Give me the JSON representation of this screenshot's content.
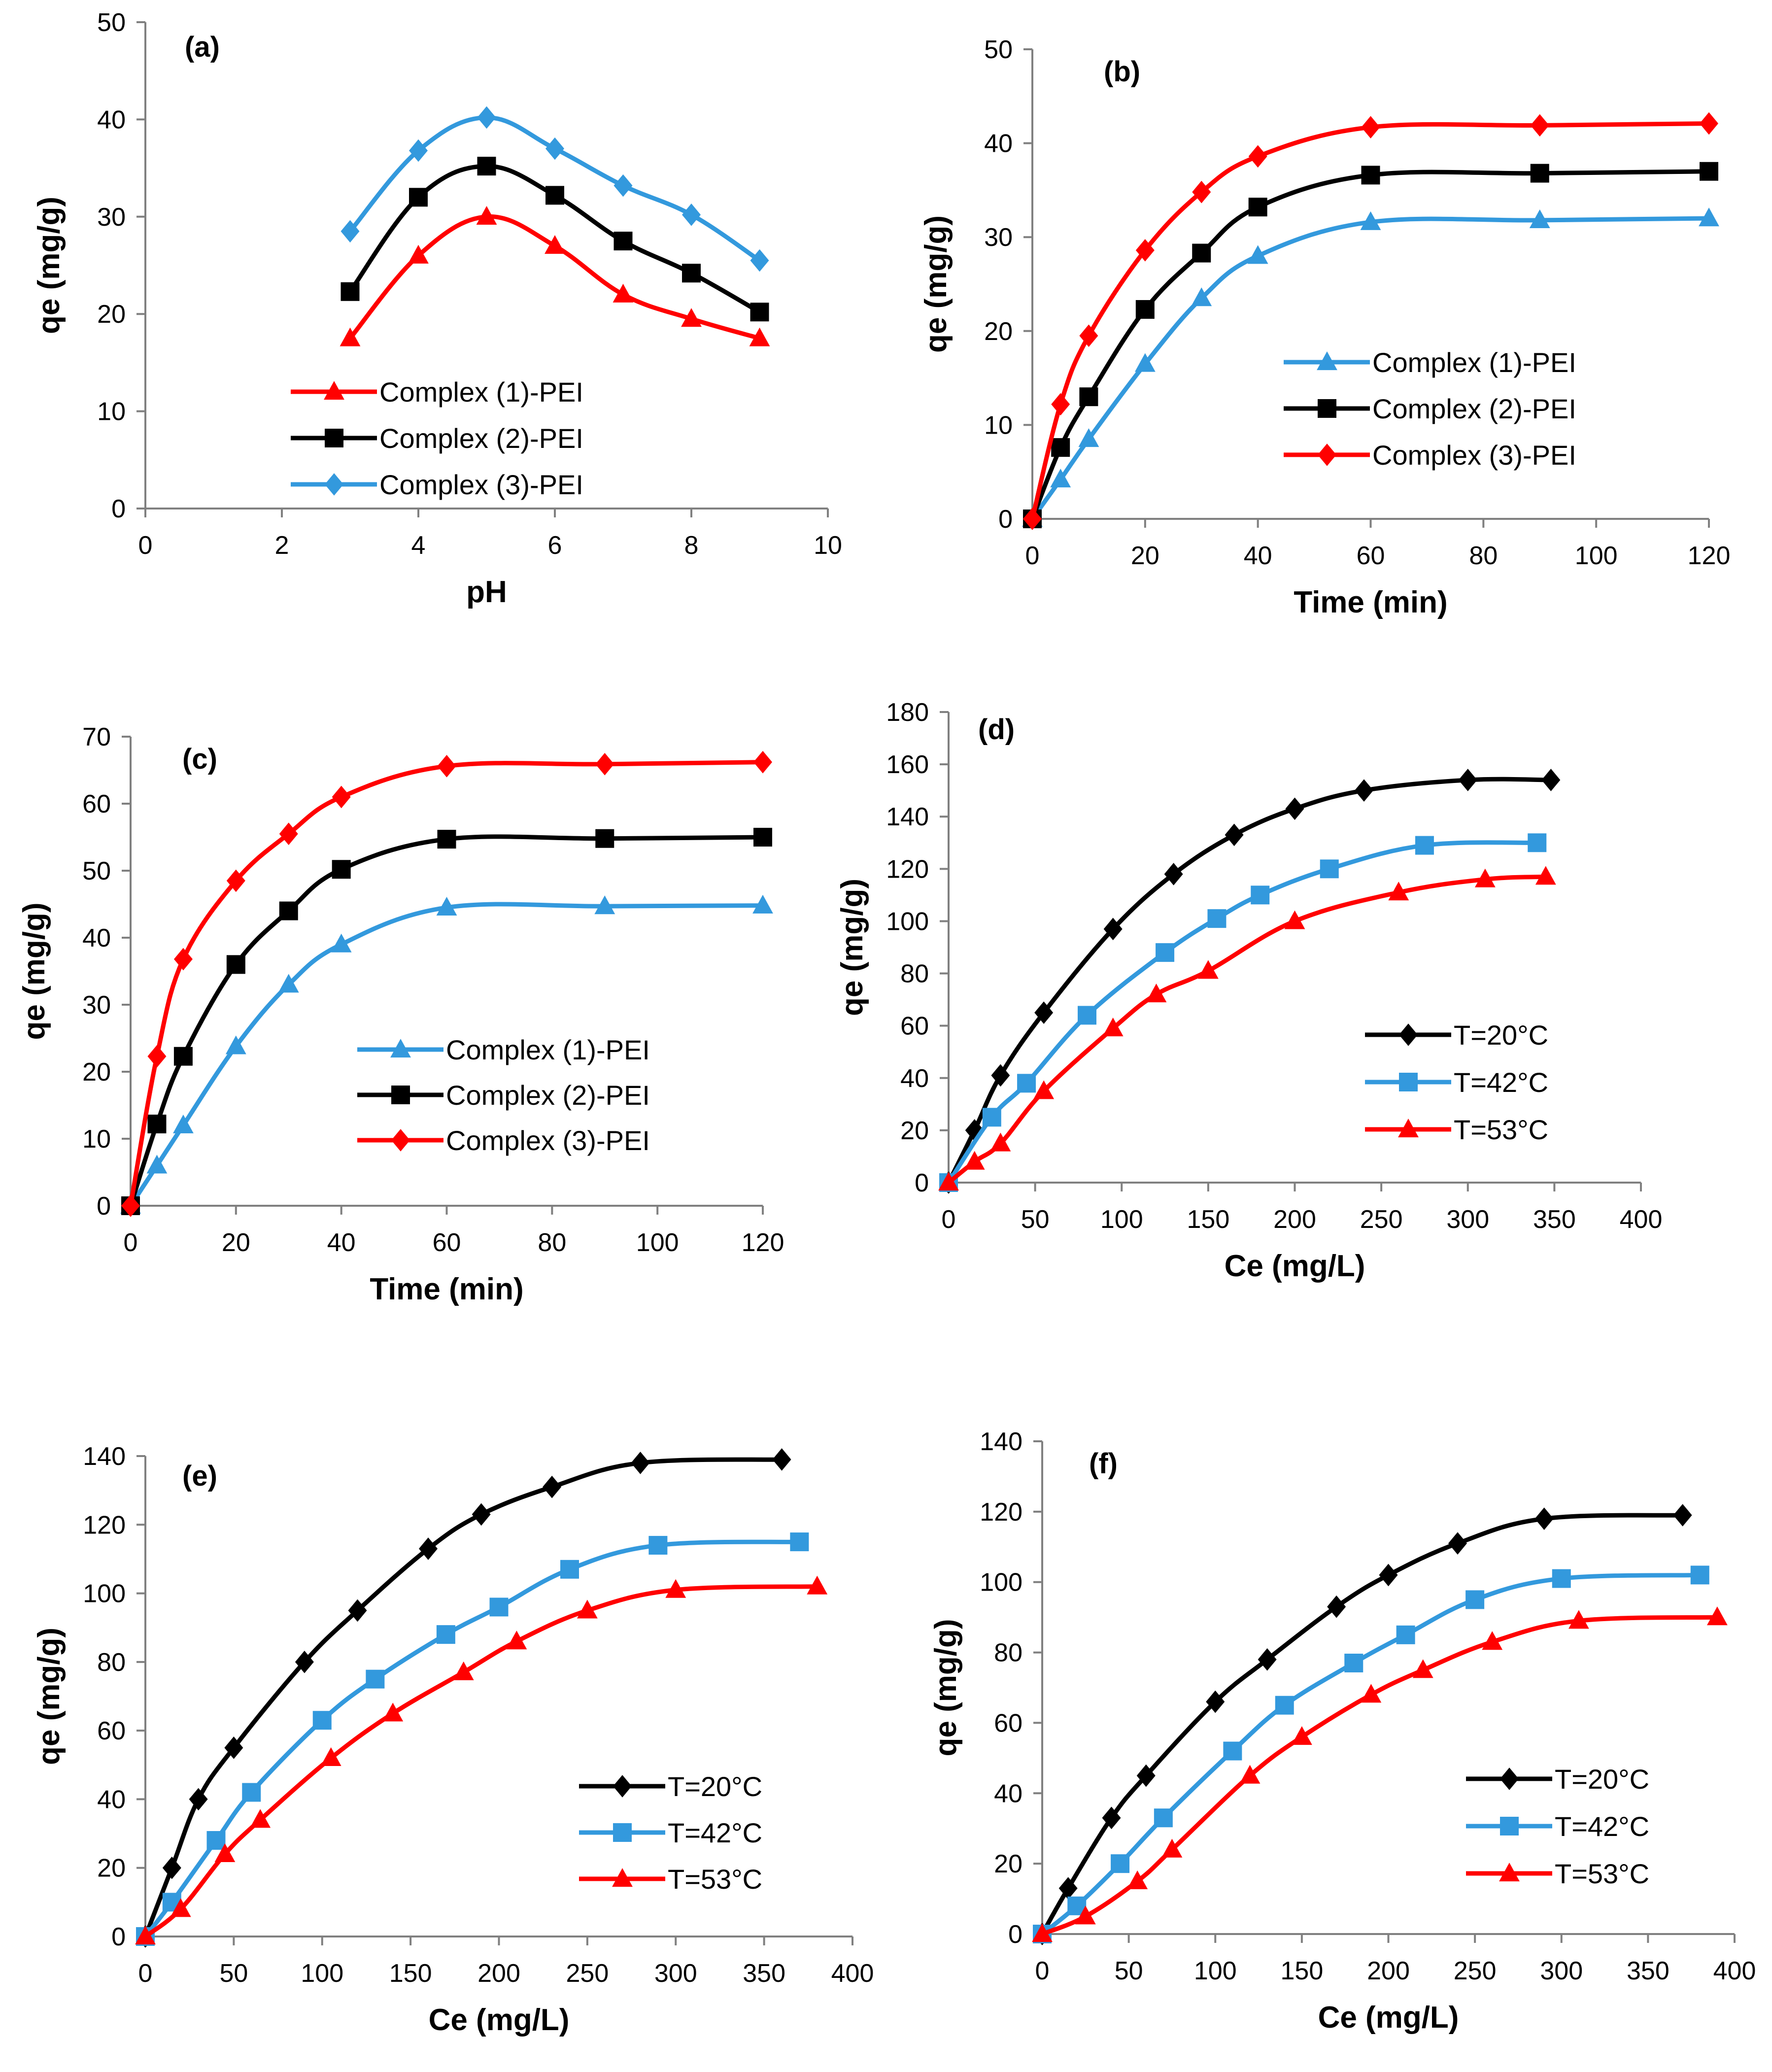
{
  "colors": {
    "red": "#ff0000",
    "black": "#000000",
    "blue": "#3399dd",
    "lightblue": "#4da6e6"
  },
  "chart_data": [
    {
      "type": "line",
      "panel": "(a)",
      "xlabel": "pH",
      "ylabel": "qe (mg/g)",
      "xlim": [
        0,
        10
      ],
      "ylim": [
        0,
        50
      ],
      "xticks": [
        "0",
        "2",
        "4",
        "6",
        "8",
        "10"
      ],
      "yticks": [
        "0",
        "10",
        "20",
        "30",
        "40",
        "50"
      ],
      "legend_position": "bottom-center",
      "series": [
        {
          "name": "Complex (1)-PEI",
          "color": "#ff0000",
          "marker": "triangle",
          "x": [
            3,
            4,
            5,
            6,
            7,
            8,
            9
          ],
          "y": [
            17.5,
            26,
            30,
            27,
            22,
            19.5,
            17.5
          ]
        },
        {
          "name": "Complex (2)-PEI",
          "color": "#000000",
          "marker": "square",
          "x": [
            3,
            4,
            5,
            6,
            7,
            8,
            9
          ],
          "y": [
            22.3,
            32,
            35.2,
            32.2,
            27.5,
            24.2,
            20.2
          ]
        },
        {
          "name": "Complex (3)-PEI",
          "color": "#3399dd",
          "marker": "diamond",
          "x": [
            3,
            4,
            5,
            6,
            7,
            8,
            9
          ],
          "y": [
            28.5,
            36.8,
            40.2,
            37,
            33.2,
            30.2,
            25.5
          ]
        }
      ]
    },
    {
      "type": "line",
      "panel": "(b)",
      "xlabel": "Time (min)",
      "ylabel": "qe (mg/g)",
      "xlim": [
        0,
        120
      ],
      "ylim": [
        0,
        50
      ],
      "xticks": [
        "0",
        "20",
        "40",
        "60",
        "80",
        "100",
        "120"
      ],
      "yticks": [
        "0",
        "10",
        "20",
        "30",
        "40",
        "50"
      ],
      "legend_position": "center-right",
      "series": [
        {
          "name": "Complex (1)-PEI",
          "color": "#3399dd",
          "marker": "triangle",
          "x": [
            0,
            5,
            10,
            20,
            30,
            40,
            60,
            90,
            120
          ],
          "y": [
            0,
            4.2,
            8.5,
            16.5,
            23.5,
            28,
            31.6,
            31.8,
            32
          ]
        },
        {
          "name": "Complex (2)-PEI",
          "color": "#000000",
          "marker": "square",
          "x": [
            0,
            5,
            10,
            20,
            30,
            40,
            60,
            90,
            120
          ],
          "y": [
            0,
            7.6,
            13,
            22.3,
            28.3,
            33.2,
            36.6,
            36.8,
            37
          ]
        },
        {
          "name": "Complex (3)-PEI",
          "color": "#ff0000",
          "marker": "diamond",
          "x": [
            0,
            5,
            10,
            20,
            30,
            40,
            60,
            90,
            120
          ],
          "y": [
            0,
            12.2,
            19.5,
            28.6,
            34.8,
            38.6,
            41.7,
            41.9,
            42.1
          ]
        }
      ]
    },
    {
      "type": "line",
      "panel": "(c)",
      "xlabel": "Time (min)",
      "ylabel": "qe (mg/g)",
      "xlim": [
        0,
        120
      ],
      "ylim": [
        0,
        70
      ],
      "xticks": [
        "0",
        "20",
        "40",
        "60",
        "80",
        "100",
        "120"
      ],
      "yticks": [
        "0",
        "10",
        "20",
        "30",
        "40",
        "50",
        "60",
        "70"
      ],
      "legend_position": "center-right",
      "series": [
        {
          "name": "Complex (1)-PEI",
          "color": "#3399dd",
          "marker": "triangle",
          "x": [
            0,
            5,
            10,
            20,
            30,
            40,
            60,
            90,
            120
          ],
          "y": [
            0,
            6,
            12,
            23.8,
            33,
            39,
            44.5,
            44.7,
            44.8
          ]
        },
        {
          "name": "Complex (2)-PEI",
          "color": "#000000",
          "marker": "square",
          "x": [
            0,
            5,
            10,
            20,
            30,
            40,
            60,
            90,
            120
          ],
          "y": [
            0,
            12.2,
            22.3,
            36,
            44,
            50.2,
            54.7,
            54.8,
            55
          ]
        },
        {
          "name": "Complex (3)-PEI",
          "color": "#ff0000",
          "marker": "diamond",
          "x": [
            0,
            5,
            10,
            20,
            30,
            40,
            60,
            90,
            120
          ],
          "y": [
            0,
            22.3,
            36.8,
            48.5,
            55.5,
            61,
            65.6,
            65.9,
            66.2
          ]
        }
      ]
    },
    {
      "type": "line",
      "panel": "(d)",
      "xlabel": "Ce (mg/L)",
      "ylabel": "qe (mg/g)",
      "xlim": [
        0,
        400
      ],
      "ylim": [
        0,
        180
      ],
      "xticks": [
        "0",
        "50",
        "100",
        "150",
        "200",
        "250",
        "300",
        "350",
        "400"
      ],
      "yticks": [
        "0",
        "20",
        "40",
        "60",
        "80",
        "100",
        "120",
        "140",
        "160",
        "180"
      ],
      "legend_position": "bottom-right",
      "series": [
        {
          "name": "T=20°C",
          "color": "#000000",
          "marker": "diamond",
          "x": [
            0,
            15,
            30,
            55,
            95,
            130,
            165,
            200,
            240,
            300,
            348
          ],
          "y": [
            0,
            20,
            41,
            65,
            97,
            118,
            133,
            143,
            150,
            154,
            154
          ]
        },
        {
          "name": "T=42°C",
          "color": "#3399dd",
          "marker": "square",
          "x": [
            0,
            25,
            45,
            80,
            125,
            155,
            180,
            220,
            275,
            340
          ],
          "y": [
            0,
            25,
            38,
            64,
            88,
            101,
            110,
            120,
            129,
            130
          ]
        },
        {
          "name": "T=53°C",
          "color": "#ff0000",
          "marker": "triangle",
          "x": [
            0,
            15,
            30,
            55,
            95,
            120,
            150,
            200,
            260,
            310,
            345
          ],
          "y": [
            0,
            8,
            15,
            35,
            59,
            72,
            81,
            100,
            111,
            116,
            117
          ]
        }
      ]
    },
    {
      "type": "line",
      "panel": "(e)",
      "xlabel": "Ce (mg/L)",
      "ylabel": "qe (mg/g)",
      "xlim": [
        0,
        400
      ],
      "ylim": [
        0,
        140
      ],
      "xticks": [
        "0",
        "50",
        "100",
        "150",
        "200",
        "250",
        "300",
        "350",
        "400"
      ],
      "yticks": [
        "0",
        "20",
        "40",
        "60",
        "80",
        "100",
        "120",
        "140"
      ],
      "legend_position": "bottom-right",
      "series": [
        {
          "name": "T=20°C",
          "color": "#000000",
          "marker": "diamond",
          "x": [
            0,
            15,
            30,
            50,
            90,
            120,
            160,
            190,
            230,
            280,
            360
          ],
          "y": [
            0,
            20,
            40,
            55,
            80,
            95,
            113,
            123,
            131,
            138,
            139
          ]
        },
        {
          "name": "T=42°C",
          "color": "#3399dd",
          "marker": "square",
          "x": [
            0,
            15,
            40,
            60,
            100,
            130,
            170,
            200,
            240,
            290,
            370
          ],
          "y": [
            0,
            10,
            28,
            42,
            63,
            75,
            88,
            96,
            107,
            114,
            115
          ]
        },
        {
          "name": "T=53°C",
          "color": "#ff0000",
          "marker": "triangle",
          "x": [
            0,
            20,
            45,
            65,
            105,
            140,
            180,
            210,
            250,
            300,
            380
          ],
          "y": [
            0,
            8,
            24,
            34,
            52,
            65,
            77,
            86,
            95,
            101,
            102
          ]
        }
      ]
    },
    {
      "type": "line",
      "panel": "(f)",
      "xlabel": "Ce (mg/L)",
      "ylabel": "qe (mg/g)",
      "xlim": [
        0,
        400
      ],
      "ylim": [
        0,
        140
      ],
      "xticks": [
        "0",
        "50",
        "100",
        "150",
        "200",
        "250",
        "300",
        "350",
        "400"
      ],
      "yticks": [
        "0",
        "20",
        "40",
        "60",
        "80",
        "100",
        "120",
        "140"
      ],
      "legend_position": "bottom-right",
      "series": [
        {
          "name": "T=20°C",
          "color": "#000000",
          "marker": "diamond",
          "x": [
            0,
            15,
            40,
            60,
            100,
            130,
            170,
            200,
            240,
            290,
            370
          ],
          "y": [
            0,
            13,
            33,
            45,
            66,
            78,
            93,
            102,
            111,
            118,
            119
          ]
        },
        {
          "name": "T=42°C",
          "color": "#3399dd",
          "marker": "square",
          "x": [
            0,
            20,
            45,
            70,
            110,
            140,
            180,
            210,
            250,
            300,
            380
          ],
          "y": [
            0,
            8,
            20,
            33,
            52,
            65,
            77,
            85,
            95,
            101,
            102
          ]
        },
        {
          "name": "T=53°C",
          "color": "#ff0000",
          "marker": "triangle",
          "x": [
            0,
            25,
            55,
            75,
            120,
            150,
            190,
            220,
            260,
            310,
            390
          ],
          "y": [
            0,
            5,
            15,
            24,
            45,
            56,
            68,
            75,
            83,
            89,
            90
          ]
        }
      ]
    }
  ]
}
